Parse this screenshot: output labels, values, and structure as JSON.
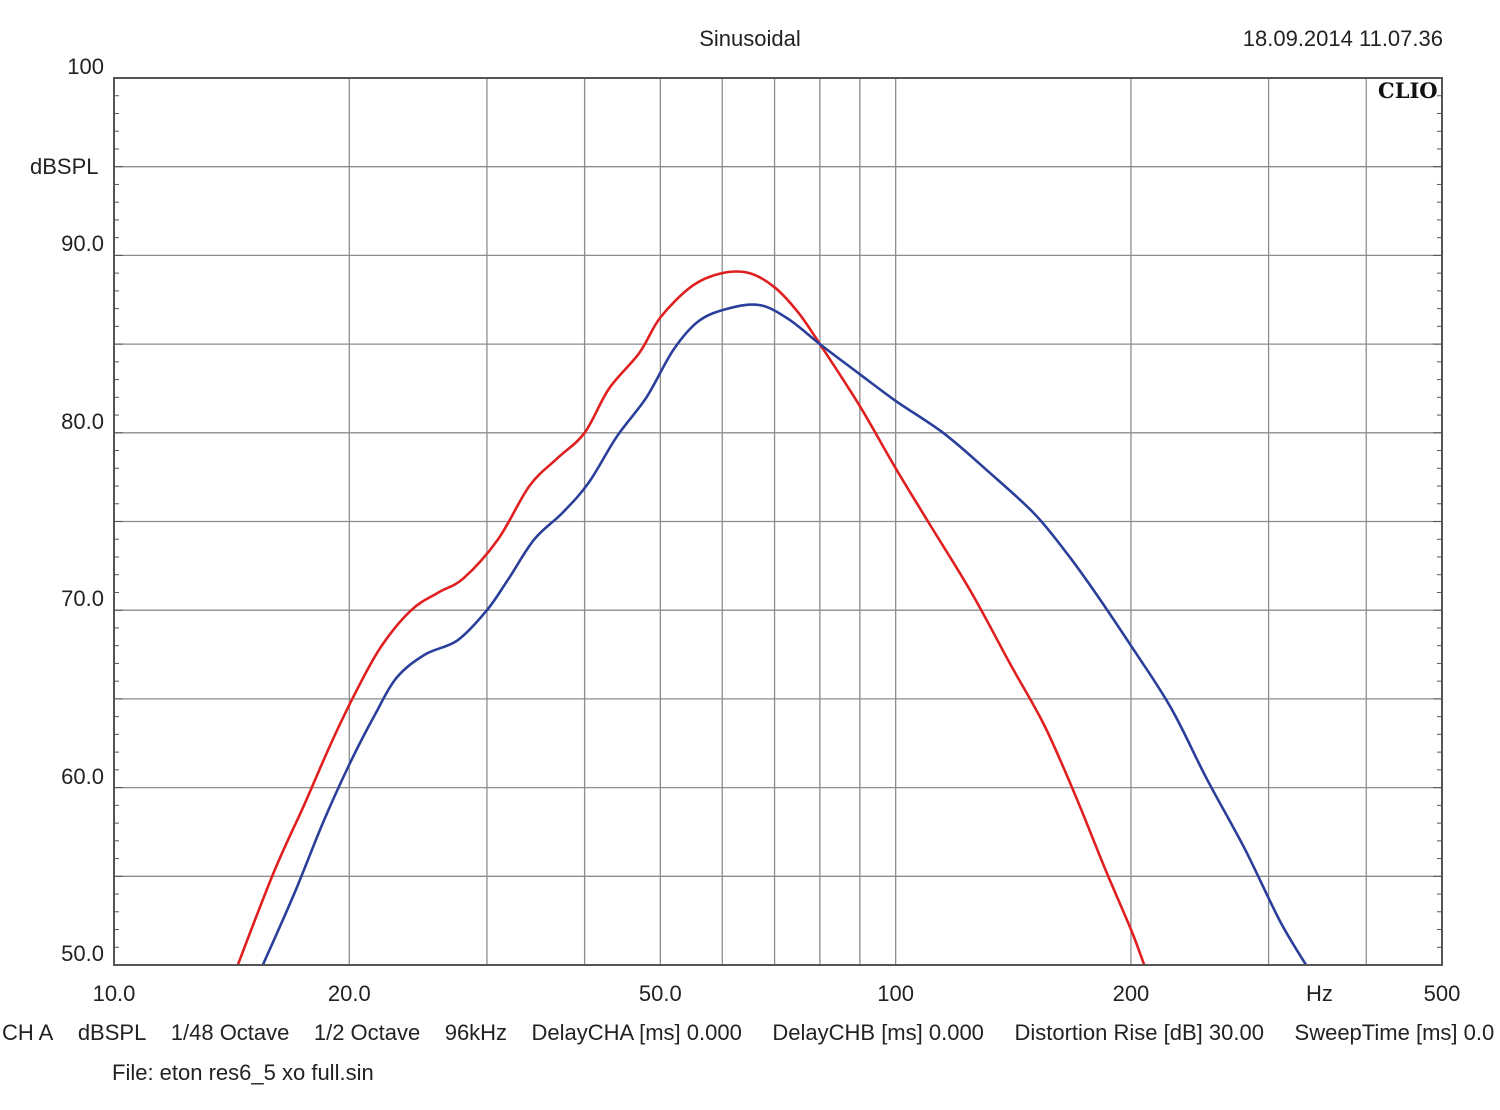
{
  "header": {
    "title": "Sinusoidal",
    "timestamp": "18.09.2014 11.07.36",
    "brand": "CLIO"
  },
  "settings_bar": {
    "channel": "CH A",
    "unit": "dBSPL",
    "resolution": "1/48 Octave",
    "smoothing": "1/2 Octave",
    "sample_rate": "96kHz",
    "delay_cha": "DelayCHA [ms] 0.000",
    "delay_chb": "DelayCHB [ms] 0.000",
    "distortion_rise": "Distortion Rise [dB] 30.00",
    "sweep_time": "SweepTime [ms] 0.0"
  },
  "file_line": "File: eton res6_5 xo full.sin",
  "colors": {
    "red_curve": "#e02020",
    "blue_curve": "#2a3f9a",
    "grid": "#8c8c8c",
    "frame": "#555555"
  },
  "chart_data": {
    "type": "line",
    "title": "Sinusoidal",
    "ylabel": "dBSPL",
    "xlabel": "Hz",
    "x_scale": "log",
    "xlim": [
      10,
      500
    ],
    "ylim": [
      50,
      100
    ],
    "x_tick_labels": [
      "10.0",
      "20.0",
      "50.0",
      "100",
      "200",
      "500"
    ],
    "x_tick_values": [
      10,
      20,
      50,
      100,
      200,
      500
    ],
    "y_tick_labels": [
      "50.0",
      "60.0",
      "70.0",
      "80.0",
      "90.0",
      "100"
    ],
    "y_tick_values": [
      50,
      60,
      70,
      80,
      90,
      100
    ],
    "grid": true,
    "series": [
      {
        "color": "red",
        "points": [
          [
            14.4,
            50.0
          ],
          [
            16.0,
            55.2
          ],
          [
            17.5,
            59.0
          ],
          [
            19.0,
            62.6
          ],
          [
            20.5,
            65.6
          ],
          [
            22.0,
            68.0
          ],
          [
            24.0,
            70.0
          ],
          [
            26.0,
            71.0
          ],
          [
            28.0,
            71.8
          ],
          [
            31.0,
            74.0
          ],
          [
            34.0,
            77.0
          ],
          [
            37.0,
            78.6
          ],
          [
            40.0,
            80.0
          ],
          [
            43.0,
            82.5
          ],
          [
            47.0,
            84.5
          ],
          [
            50.0,
            86.5
          ],
          [
            55.0,
            88.3
          ],
          [
            60.0,
            89.0
          ],
          [
            65.0,
            89.0
          ],
          [
            70.0,
            88.2
          ],
          [
            75.0,
            86.8
          ],
          [
            80.0,
            85.0
          ],
          [
            90.0,
            81.5
          ],
          [
            100.0,
            78.0
          ],
          [
            110.0,
            75.0
          ],
          [
            125.0,
            71.0
          ],
          [
            140.0,
            67.0
          ],
          [
            155.0,
            63.5
          ],
          [
            170.0,
            59.5
          ],
          [
            185.0,
            55.5
          ],
          [
            200.0,
            52.0
          ],
          [
            208.0,
            50.0
          ]
        ]
      },
      {
        "color": "blue",
        "points": [
          [
            15.5,
            50.0
          ],
          [
            17.0,
            54.0
          ],
          [
            18.5,
            58.0
          ],
          [
            20.0,
            61.3
          ],
          [
            21.5,
            64.0
          ],
          [
            23.0,
            66.2
          ],
          [
            25.0,
            67.5
          ],
          [
            27.5,
            68.3
          ],
          [
            30.0,
            70.0
          ],
          [
            32.0,
            71.8
          ],
          [
            34.5,
            74.0
          ],
          [
            37.5,
            75.5
          ],
          [
            40.5,
            77.2
          ],
          [
            44.0,
            79.8
          ],
          [
            48.0,
            82.0
          ],
          [
            52.0,
            84.7
          ],
          [
            56.0,
            86.3
          ],
          [
            61.0,
            87.0
          ],
          [
            67.0,
            87.2
          ],
          [
            73.0,
            86.4
          ],
          [
            80.0,
            85.0
          ],
          [
            90.0,
            83.3
          ],
          [
            100.0,
            81.8
          ],
          [
            115.0,
            80.0
          ],
          [
            130.0,
            78.0
          ],
          [
            150.0,
            75.5
          ],
          [
            165.0,
            73.3
          ],
          [
            180.0,
            71.0
          ],
          [
            200.0,
            68.0
          ],
          [
            225.0,
            64.5
          ],
          [
            250.0,
            60.5
          ],
          [
            280.0,
            56.5
          ],
          [
            310.0,
            52.5
          ],
          [
            335.0,
            50.0
          ]
        ]
      }
    ]
  }
}
